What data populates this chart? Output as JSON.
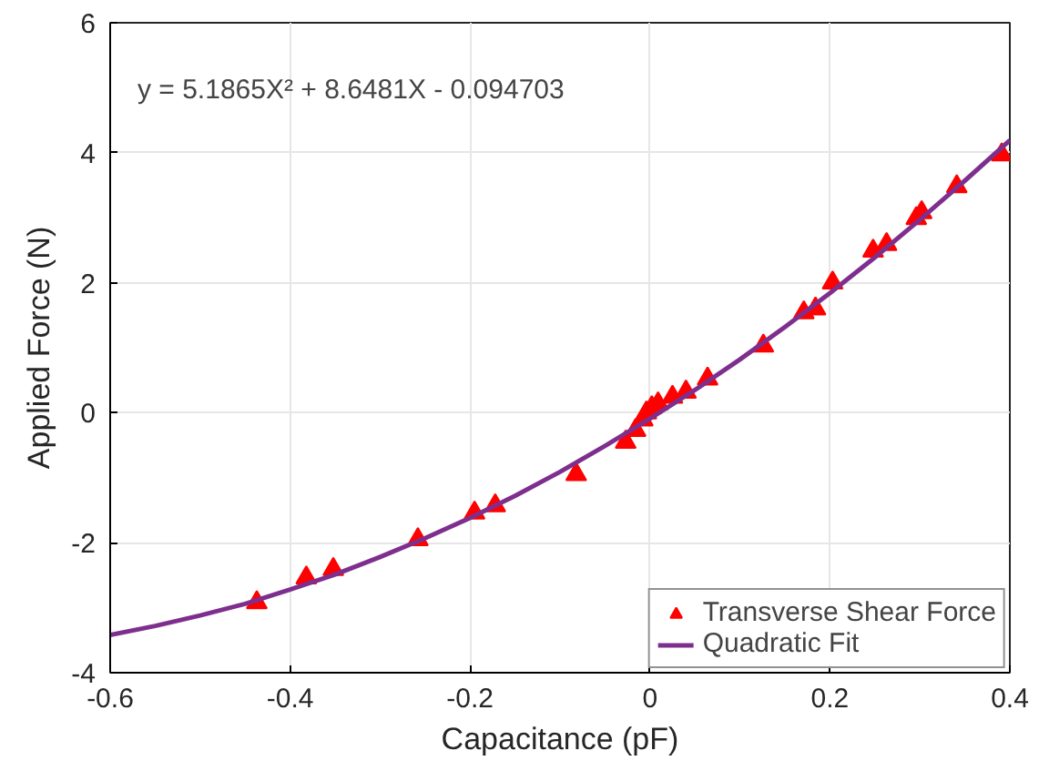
{
  "chart_data": {
    "type": "scatter",
    "xlabel": "Capacitance (pF)",
    "ylabel": "Applied Force (N)",
    "annotations": [
      "y = 5.1865X² + 8.6481X - 0.094703"
    ],
    "xlim": [
      -0.6,
      0.4
    ],
    "xticks": [
      -0.6,
      -0.4,
      -0.2,
      0,
      0.2,
      0.4
    ],
    "ylim": [
      -4,
      6
    ],
    "yticks": [
      -4,
      -2,
      0,
      2,
      4,
      6
    ],
    "grid": true,
    "legend": "bottom right",
    "series": [
      {
        "name": "Transverse Shear Force",
        "marker": "triangle",
        "color": "#ff0000",
        "x": [
          -0.437,
          -0.382,
          -0.352,
          -0.258,
          -0.195,
          -0.172,
          -0.082,
          -0.027,
          -0.016,
          -0.008,
          -0.004,
          0.002,
          0.009,
          0.025,
          0.04,
          0.064,
          0.126,
          0.171,
          0.184,
          0.203,
          0.248,
          0.263,
          0.296,
          0.302,
          0.341,
          0.391
        ],
        "values": [
          -2.92,
          -2.54,
          -2.41,
          -1.95,
          -1.54,
          -1.43,
          -0.95,
          -0.45,
          -0.27,
          -0.11,
          0.0,
          0.08,
          0.14,
          0.24,
          0.32,
          0.52,
          1.03,
          1.54,
          1.6,
          2.0,
          2.49,
          2.59,
          2.99,
          3.08,
          3.48,
          3.97
        ]
      },
      {
        "name": "Quadratic Fit",
        "type": "line",
        "line_style": "solid",
        "color": "#7e2f8e",
        "x": [
          -0.6,
          -0.55,
          -0.5,
          -0.45,
          -0.4,
          -0.35,
          -0.3,
          -0.25,
          -0.2,
          -0.15,
          -0.1,
          -0.05,
          0,
          0.05,
          0.1,
          0.15,
          0.2,
          0.25,
          0.3,
          0.35,
          0.4
        ],
        "values": [
          -3.42,
          -3.28,
          -3.12,
          -2.94,
          -2.72,
          -2.49,
          -2.22,
          -1.93,
          -1.62,
          -1.28,
          -0.91,
          -0.51,
          -0.09,
          0.35,
          0.82,
          1.32,
          1.84,
          2.39,
          2.97,
          3.57,
          4.19
        ]
      }
    ]
  }
}
